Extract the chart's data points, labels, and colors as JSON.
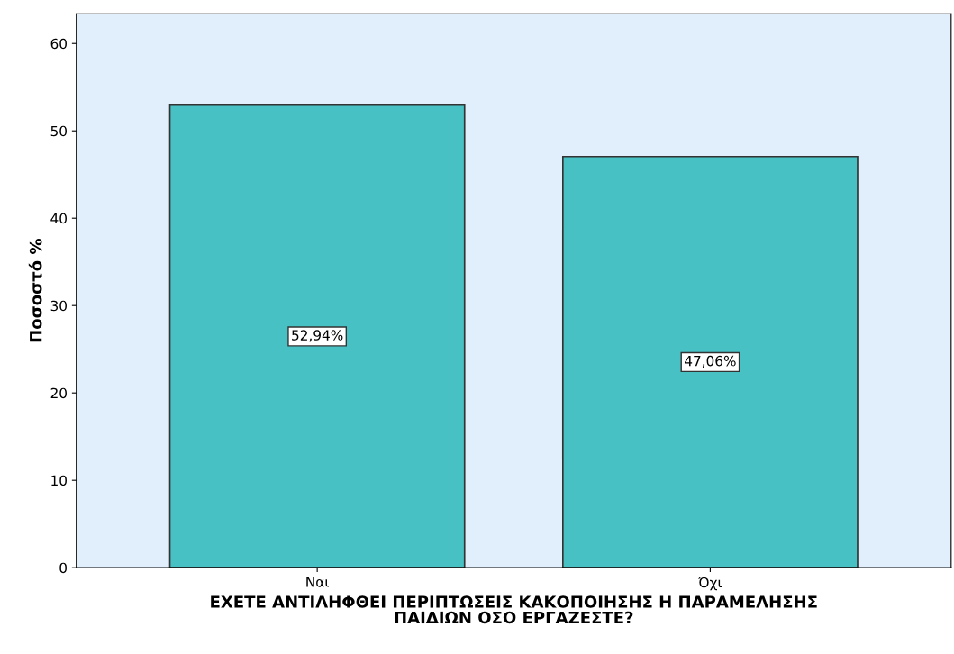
{
  "chart_data": {
    "type": "bar",
    "categories": [
      "Ναι",
      "Όχι"
    ],
    "values": [
      52.94,
      47.06
    ],
    "value_labels": [
      "52,94%",
      "47,06%"
    ],
    "color": "#48c1c4",
    "xlabel": "ΕΧΕΤΕ ΑΝΤΙΛΗΦΘΕΙ ΠΕΡΙΠΤΩΣΕΙΣ ΚΑΚΟΠΟΙΗΣΗΣ Η ΠΑΡΑΜΕΛΗΣΗΣ\nΠΑΙΔΙΩΝ ΟΣΟ ΕΡΓΑΖΕΣΤΕ?",
    "ylabel": "Ποσοστό %",
    "ylim": [
      0,
      63.4
    ],
    "yticks": [
      0,
      10,
      20,
      30,
      40,
      50,
      60
    ],
    "grid": false
  }
}
